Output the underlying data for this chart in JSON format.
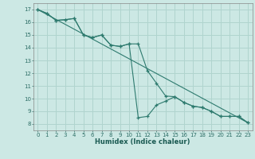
{
  "background_color": "#cce8e4",
  "grid_color": "#b0d4ce",
  "line_color": "#2d7a6e",
  "xlabel": "Humidex (Indice chaleur)",
  "xlim": [
    -0.5,
    23.5
  ],
  "ylim": [
    7.5,
    17.5
  ],
  "xticks": [
    0,
    1,
    2,
    3,
    4,
    5,
    6,
    7,
    8,
    9,
    10,
    11,
    12,
    13,
    14,
    15,
    16,
    17,
    18,
    19,
    20,
    21,
    22,
    23
  ],
  "yticks": [
    8,
    9,
    10,
    11,
    12,
    13,
    14,
    15,
    16,
    17
  ],
  "line1_x": [
    0,
    1,
    2,
    3,
    4,
    5,
    6,
    7,
    8,
    9,
    10,
    11,
    12,
    13,
    14,
    15,
    16,
    17,
    18,
    19,
    20,
    21,
    22,
    23
  ],
  "line1_y": [
    17.0,
    16.7,
    16.15,
    16.2,
    16.3,
    15.0,
    14.8,
    15.0,
    14.2,
    14.1,
    14.3,
    14.3,
    12.2,
    11.2,
    10.2,
    10.15,
    9.7,
    9.4,
    9.3,
    9.0,
    8.6,
    8.6,
    8.6,
    8.1
  ],
  "line2_x": [
    0,
    1,
    2,
    3,
    4,
    5,
    6,
    7,
    8,
    9,
    10,
    11,
    12,
    13,
    14,
    15,
    16,
    17,
    18,
    19,
    20,
    21,
    22,
    23
  ],
  "line2_y": [
    17.0,
    16.7,
    16.15,
    16.2,
    16.3,
    15.0,
    14.8,
    15.0,
    14.2,
    14.1,
    14.3,
    8.5,
    8.6,
    9.5,
    9.8,
    10.15,
    9.7,
    9.4,
    9.3,
    9.0,
    8.6,
    8.6,
    8.6,
    8.1
  ],
  "line3_x": [
    0,
    23
  ],
  "line3_y": [
    17.0,
    8.1
  ]
}
